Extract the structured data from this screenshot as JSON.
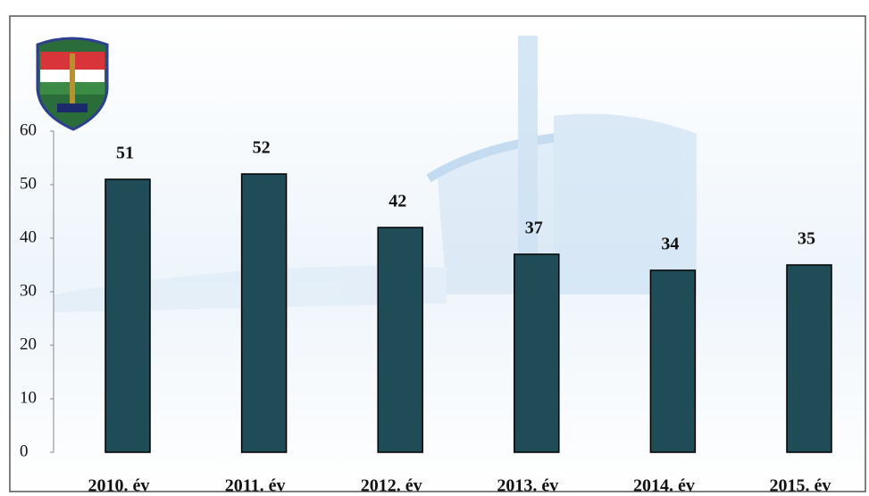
{
  "chart_data": {
    "type": "bar",
    "categories": [
      "2010. év",
      "2011. év",
      "2012. év",
      "2013. év",
      "2014. év",
      "2015. év"
    ],
    "values": [
      51,
      52,
      42,
      37,
      34,
      35
    ],
    "color": "#1f4c57",
    "ylim": [
      0,
      60
    ],
    "yticks": [
      0,
      10,
      20,
      30,
      40,
      50,
      60
    ],
    "grid": false
  }
}
